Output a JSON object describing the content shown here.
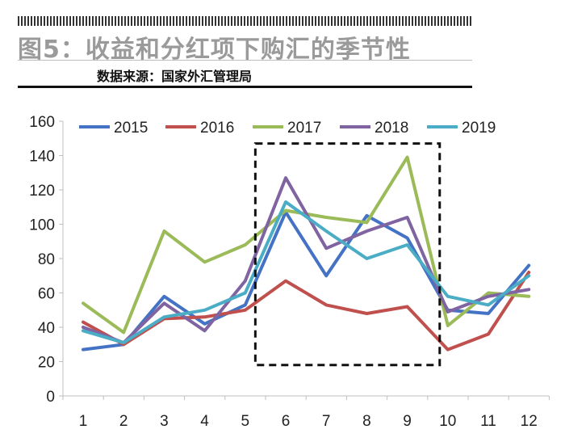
{
  "header": {
    "title": "图5：收益和分红项下购汇的季节性",
    "source": "数据来源：国家外汇管理局"
  },
  "chart_data": {
    "type": "line",
    "title": "",
    "xlabel": "",
    "ylabel": "",
    "x": [
      1,
      2,
      3,
      4,
      5,
      6,
      7,
      8,
      9,
      10,
      11,
      12
    ],
    "ylim": [
      0,
      160
    ],
    "yticks": [
      0,
      20,
      40,
      60,
      80,
      100,
      120,
      140,
      160
    ],
    "grid": false,
    "legend": "top",
    "highlight_box": {
      "x_range": [
        5.25,
        9.8
      ],
      "y_range": [
        18,
        147
      ]
    },
    "series": [
      {
        "name": "2015",
        "color": "#4472c4",
        "values": [
          27,
          30,
          58,
          42,
          53,
          107,
          70,
          105,
          92,
          50,
          48,
          76
        ]
      },
      {
        "name": "2016",
        "color": "#c0504d",
        "values": [
          43,
          30,
          45,
          46,
          50,
          67,
          53,
          48,
          52,
          27,
          36,
          72
        ]
      },
      {
        "name": "2017",
        "color": "#9bbb59",
        "values": [
          54,
          37,
          96,
          78,
          88,
          108,
          104,
          101,
          139,
          41,
          60,
          58
        ]
      },
      {
        "name": "2018",
        "color": "#8064a2",
        "values": [
          40,
          31,
          54,
          38,
          67,
          127,
          86,
          96,
          104,
          49,
          58,
          62
        ]
      },
      {
        "name": "2019",
        "color": "#4bacc6",
        "values": [
          38,
          31,
          46,
          50,
          60,
          113,
          96,
          80,
          88,
          58,
          53,
          70
        ]
      }
    ]
  }
}
